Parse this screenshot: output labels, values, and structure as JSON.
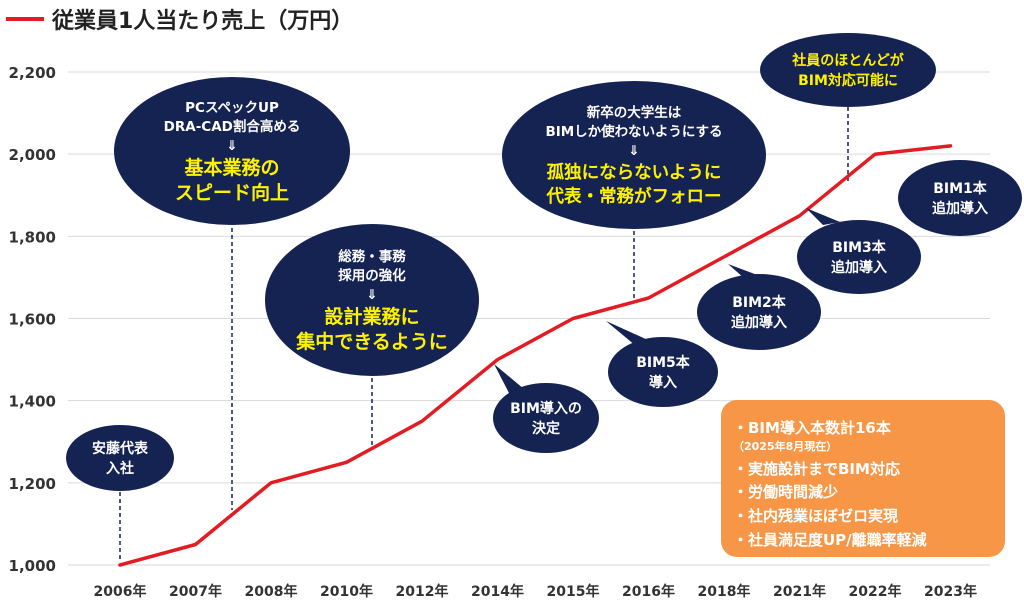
{
  "chart_data": {
    "type": "line",
    "title": "",
    "xlabel": "",
    "ylabel": "",
    "ylim": [
      1000,
      2200
    ],
    "yticks": [
      1000,
      1200,
      1400,
      1600,
      1800,
      2000,
      2200
    ],
    "ytick_labels": [
      "1,000",
      "1,200",
      "1,400",
      "1,600",
      "1,800",
      "2,000",
      "2,200"
    ],
    "grid": "horizontal",
    "legend": "top-left",
    "categories": [
      "2006年",
      "2007年",
      "2008年",
      "2010年",
      "2012年",
      "2014年",
      "2015年",
      "2016年",
      "2018年",
      "2021年",
      "2022年",
      "2023年"
    ],
    "series": [
      {
        "name": "従業員1人当たり売上（万円）",
        "color": "#e31b23",
        "values": [
          1000,
          1050,
          1200,
          1250,
          1350,
          1500,
          1600,
          1650,
          1750,
          1850,
          2000,
          2020
        ]
      }
    ]
  },
  "colors": {
    "bubble": "#152353",
    "highlight": "#fff200",
    "line": "#e31b23",
    "grid": "#d9d9d9",
    "info_box": "#f79646"
  },
  "annotations": [
    {
      "kind": "event",
      "anchor": 0,
      "lines": [
        "安藤代表",
        "入社"
      ],
      "highlight": []
    },
    {
      "kind": "event",
      "anchor": 1.5,
      "lines": [
        "PCスペックUP",
        "DRA-CAD割合高める",
        "⇓"
      ],
      "highlight": [
        "基本業務の",
        "スピード向上"
      ]
    },
    {
      "kind": "event",
      "anchor": 3,
      "lines": [
        "総務・事務",
        "採用の強化",
        "⇓"
      ],
      "highlight": [
        "設計業務に",
        "集中できるように"
      ]
    },
    {
      "kind": "event",
      "anchor": 7,
      "lines": [
        "新卒の大学生は",
        "BIMしか使わないようにする",
        "⇓"
      ],
      "highlight": [
        "孤独にならないように",
        "代表・常務がフォロー"
      ]
    },
    {
      "kind": "event",
      "anchor": 10,
      "lines": [],
      "highlight": [
        "社員のほとんどが",
        "BIM対応可能に"
      ]
    },
    {
      "kind": "callout",
      "anchor": 5,
      "lines": [
        "BIM導入の",
        "決定"
      ]
    },
    {
      "kind": "callout",
      "anchor": 6,
      "lines": [
        "BIM5本",
        "導入"
      ]
    },
    {
      "kind": "callout",
      "anchor": 8,
      "lines": [
        "BIM2本",
        "追加導入"
      ]
    },
    {
      "kind": "callout",
      "anchor": 9,
      "lines": [
        "BIM3本",
        "追加導入"
      ]
    },
    {
      "kind": "callout",
      "anchor": 11,
      "lines": [
        "BIM1本",
        "追加導入"
      ]
    }
  ],
  "info_box": {
    "items": [
      "・BIM導入本数計16本",
      "（2025年8月現在）",
      "・実施設計までBIM対応",
      "・労働時間減少",
      "・社内残業ほぼゼロ実現",
      "・社員満足度UP/離職率軽減"
    ]
  }
}
